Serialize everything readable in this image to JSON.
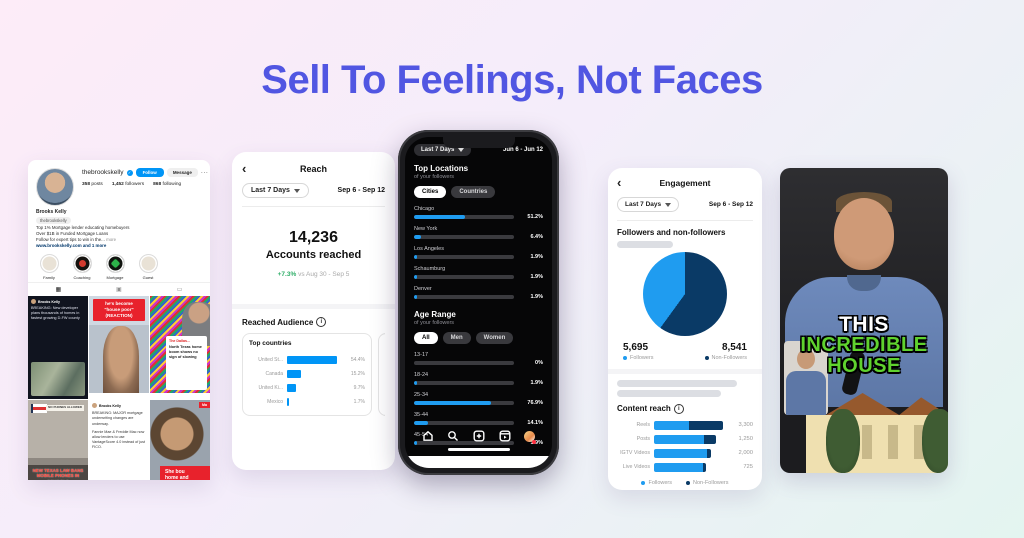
{
  "title": "Sell To Feelings, Not Faces",
  "colors": {
    "accent_blue": "#0095f6",
    "light_blue": "#1f9cf0",
    "dark_blue": "#0a3a66",
    "delta_green": "#2fae68",
    "title_purple": "#5156e2",
    "alert_red": "#e8222c",
    "thumb_green": "#5fd22e"
  },
  "profile": {
    "username": "thebrookskelly",
    "buttons": {
      "follow": "Follow",
      "message": "Message",
      "more": "···"
    },
    "stats": [
      {
        "value": "358",
        "label": "posts"
      },
      {
        "value": "1,452",
        "label": "followers"
      },
      {
        "value": "868",
        "label": "following"
      }
    ],
    "display_name": "Brooks Kelly",
    "category_badge": "thebrookskelly",
    "bio_lines": [
      "Top 1% Mortgage lender educating homebuyers",
      "Over $1B in Funded Mortgage Loans",
      "Follow for expert tips to win in the..."
    ],
    "bio_more": "more",
    "link": "www.brookskelly.com and 1 more",
    "highlights": [
      {
        "label": "Family"
      },
      {
        "label": "Coaching"
      },
      {
        "label": "Mortgage"
      },
      {
        "label": "Guest"
      }
    ],
    "posts": {
      "p1_author": "Brooks Kelly",
      "p1_text": "BREAKING: New developer plans thousands of homes in fastest growing D-FW county",
      "p1_text2": "I found out where it is and what they're building",
      "p2_l1": "he's become",
      "p2_l2": "\"house poor\"",
      "p2_l3": "(REACTION)",
      "p3_source": "The Dallas...",
      "p3_headline": "North Texas home boom shows no sign of slowing",
      "p4_sign": "NO PHONES ALLOWED",
      "p4_l1": "NEW TEXAS LAW BANS",
      "p4_l2": "MOBILE PHONES IN SCHOOLS",
      "p4_l3": "HERE'S WHAT PARENTS",
      "p4_l4": "NEED TO KNOW",
      "p5_author": "Brooks Kelly",
      "p5_text": "BREAKING: MAJOR mortgage underwriting changes are underway.",
      "p5_text2": "Fannie Mae & Freddie Mac now allow lenders to use VantageScore 4.0 instead of just FICO.",
      "p6_tag": "Ma",
      "p6_l1": "She bou",
      "p6_l2": "home and"
    }
  },
  "reach": {
    "back": "‹",
    "title": "Reach",
    "period": "Last 7 Days",
    "date_range": "Sep 6 - Sep 12",
    "metric_value": "14,236",
    "metric_label": "Accounts reached",
    "delta": "+7.3%",
    "delta_context": "vs Aug 30 - Sep 5",
    "section_title": "Reached Audience",
    "top_countries": {
      "title": "Top countries",
      "rows": [
        {
          "label": "United St...",
          "pct": "54.4%",
          "bar": 100
        },
        {
          "label": "Canada",
          "pct": "15.2%",
          "bar": 28
        },
        {
          "label": "United Ki...",
          "pct": "9.7%",
          "bar": 18
        },
        {
          "label": "Mexico",
          "pct": "1.7%",
          "bar": 4
        }
      ]
    },
    "partial_card": {
      "title": "To",
      "row_label": "W"
    }
  },
  "phone": {
    "period": "Last 7 Days",
    "date_range": "Jun 6 - Jun 12",
    "top_locations": {
      "title": "Top Locations",
      "subtitle": "of your followers",
      "tab_cities": "Cities",
      "tab_countries": "Countries",
      "rows": [
        {
          "label": "Chicago",
          "pct": "51.2%",
          "bar": 51
        },
        {
          "label": "New York",
          "pct": "6.4%",
          "bar": 6.5
        },
        {
          "label": "Los Angeles",
          "pct": "1.9%",
          "bar": 2.5
        },
        {
          "label": "Schaumburg",
          "pct": "1.9%",
          "bar": 2.5
        },
        {
          "label": "Denver",
          "pct": "1.9%",
          "bar": 2.5
        }
      ]
    },
    "age_range": {
      "title": "Age Range",
      "subtitle": "of your followers",
      "tab_all": "All",
      "tab_men": "Men",
      "tab_women": "Women",
      "rows": [
        {
          "label": "13-17",
          "pct": "0%",
          "bar": 0
        },
        {
          "label": "18-24",
          "pct": "1.9%",
          "bar": 2.5
        },
        {
          "label": "25-34",
          "pct": "76.9%",
          "bar": 77
        },
        {
          "label": "35-44",
          "pct": "14.1%",
          "bar": 14
        },
        {
          "label": "45-54",
          "pct": "1.9%",
          "bar": 2.5
        }
      ]
    }
  },
  "engagement": {
    "back": "‹",
    "title": "Engagement",
    "period": "Last 7 Days",
    "date_range": "Sep 6 - Sep 12",
    "pie_section_title": "Followers and non-followers",
    "pie": {
      "dark_deg": 216,
      "followers_value": "5,695",
      "followers_label": "Followers",
      "non_followers_value": "8,541",
      "non_followers_label": "Non-Followers"
    },
    "content_reach": {
      "title": "Content reach",
      "rows": [
        {
          "label": "Reels",
          "value": "3,300",
          "track": 100,
          "dark_share": 50
        },
        {
          "label": "Posts",
          "value": "1,250",
          "track": 90,
          "dark_share": 20
        },
        {
          "label": "IGTV Videos",
          "value": "2,000",
          "track": 82,
          "dark_share": 7
        },
        {
          "label": "Live Videos",
          "value": "725",
          "track": 75,
          "dark_share": 5
        }
      ],
      "legend_followers": "Followers",
      "legend_non_followers": "Non-Followers"
    }
  },
  "video": {
    "line1": "THIS",
    "line2": "INCREDIBLE",
    "line3": "HOUSE"
  }
}
